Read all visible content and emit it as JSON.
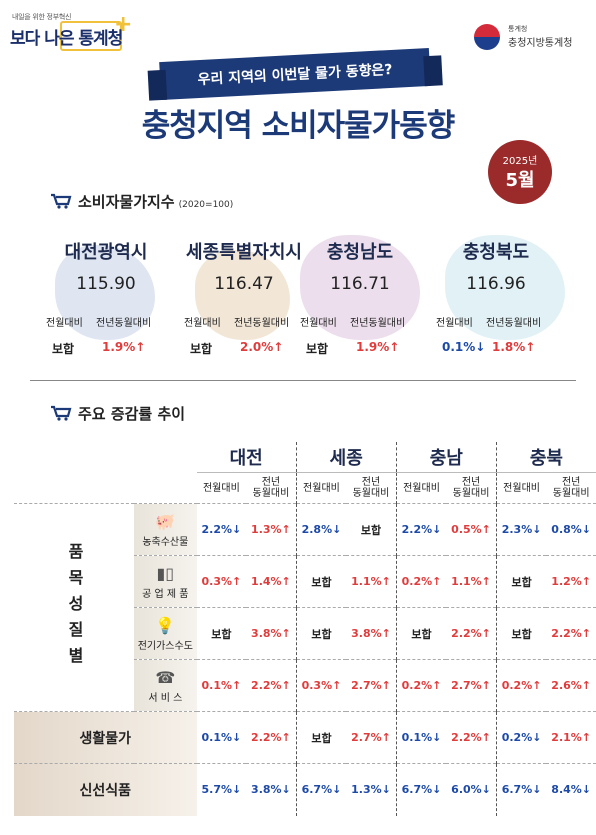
{
  "header": {
    "slogan_small": "내일을 위한 정부혁신",
    "logo_text": "보다 나은 통계청",
    "gov_small": "통계청",
    "gov_name": "충청지방통계청",
    "banner": "우리 지역의 이번달 물가 동향은?",
    "title": "충청지역 소비자물가동향",
    "year": "2025년",
    "month": "5월"
  },
  "section1": {
    "title": "소비자물가지수",
    "sub": "(2020=100)"
  },
  "regions": [
    {
      "name": "대전광역시",
      "index": "115.90",
      "mom_label": "전월대비",
      "yoy_label": "전년동월대비",
      "mom": "보합",
      "yoy": "1.9%↑"
    },
    {
      "name": "세종특별자치시",
      "index": "116.47",
      "mom_label": "전월대비",
      "yoy_label": "전년동월대비",
      "mom": "보합",
      "yoy": "2.0%↑"
    },
    {
      "name": "충청남도",
      "index": "116.71",
      "mom_label": "전월대비",
      "yoy_label": "전년동월대비",
      "mom": "보합",
      "yoy": "1.9%↑"
    },
    {
      "name": "충청북도",
      "index": "116.96",
      "mom_label": "전월대비",
      "yoy_label": "전년동월대비",
      "mom": "0.1%↓",
      "yoy": "1.8%↑"
    }
  ],
  "section2": {
    "title": "주요 증감률 추이"
  },
  "table": {
    "regions": [
      "대전",
      "세종",
      "충남",
      "충북"
    ],
    "sub_mom": "전월대비",
    "sub_yoy_line1": "전년",
    "sub_yoy_line2": "동월대비",
    "side_label": "품목성질별",
    "rows": [
      {
        "label": "농축수산물",
        "cells": [
          "2.2%↓",
          "1.3%↑",
          "2.8%↓",
          "보합",
          "2.2%↓",
          "0.5%↑",
          "2.3%↓",
          "0.8%↓"
        ]
      },
      {
        "label": "공 업 제 품",
        "cells": [
          "0.3%↑",
          "1.4%↑",
          "보합",
          "1.1%↑",
          "0.2%↑",
          "1.1%↑",
          "보합",
          "1.2%↑"
        ]
      },
      {
        "label": "전기가스수도",
        "cells": [
          "보합",
          "3.8%↑",
          "보합",
          "3.8%↑",
          "보합",
          "2.2%↑",
          "보합",
          "2.2%↑"
        ]
      },
      {
        "label": "서 비 스",
        "cells": [
          "0.1%↑",
          "2.2%↑",
          "0.3%↑",
          "2.7%↑",
          "0.2%↑",
          "2.7%↑",
          "0.2%↑",
          "2.6%↑"
        ]
      }
    ],
    "big_rows": [
      {
        "label": "생활물가",
        "cells": [
          "0.1%↓",
          "2.2%↑",
          "보합",
          "2.7%↑",
          "0.1%↓",
          "2.2%↑",
          "0.2%↓",
          "2.1%↑"
        ]
      },
      {
        "label": "신선식품",
        "cells": [
          "5.7%↓",
          "3.8%↓",
          "6.7%↓",
          "1.3%↓",
          "6.7%↓",
          "6.0%↓",
          "6.7%↓",
          "8.4%↓"
        ]
      }
    ]
  },
  "colors": {
    "up": "#e03c3c",
    "down": "#1d4aa8",
    "navy": "#1d3a78",
    "badge": "#9b2a2a"
  }
}
